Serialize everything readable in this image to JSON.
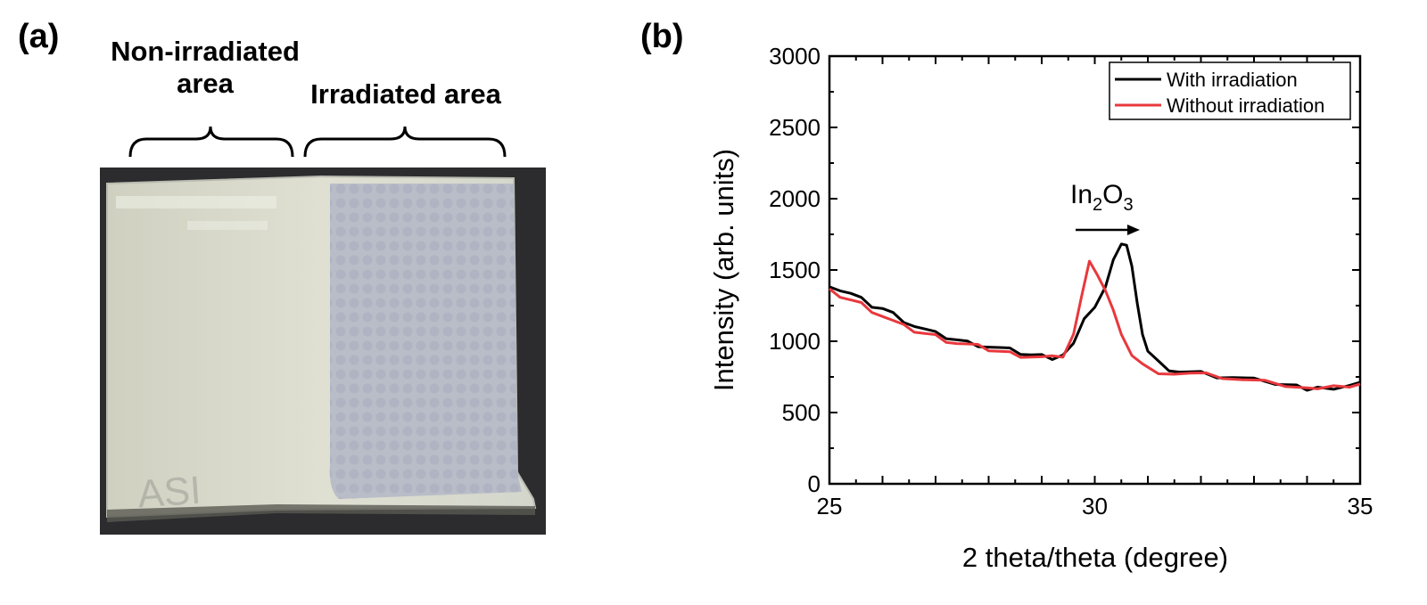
{
  "panel_a": {
    "label": "(a)",
    "caption_left_line1": "Non-irradiated",
    "caption_left_line2": "area",
    "caption_right": "Irradiated area",
    "sample_marking": "ASI"
  },
  "panel_b": {
    "label": "(b)",
    "annotation": {
      "base": "In",
      "sub1": "2",
      "mid": "O",
      "sub2": "3"
    }
  },
  "chart_data": {
    "type": "line",
    "xlabel": "2 theta/theta (degree)",
    "ylabel": "Intensity (arb. units)",
    "xlim": [
      25,
      35
    ],
    "ylim": [
      0,
      3000
    ],
    "xticks": [
      25,
      30,
      35
    ],
    "yticks": [
      0,
      500,
      1000,
      1500,
      2000,
      2500,
      3000
    ],
    "grid": false,
    "legend_position": "top-right",
    "series": [
      {
        "name": "With irradiation",
        "color": "#000000",
        "points": [
          [
            25.0,
            1400
          ],
          [
            25.2,
            1360
          ],
          [
            25.4,
            1330
          ],
          [
            25.6,
            1290
          ],
          [
            25.8,
            1250
          ],
          [
            26.0,
            1230
          ],
          [
            26.2,
            1190
          ],
          [
            26.4,
            1150
          ],
          [
            26.6,
            1110
          ],
          [
            26.8,
            1080
          ],
          [
            27.0,
            1050
          ],
          [
            27.2,
            1030
          ],
          [
            27.4,
            1010
          ],
          [
            27.6,
            990
          ],
          [
            27.8,
            980
          ],
          [
            28.0,
            965
          ],
          [
            28.2,
            950
          ],
          [
            28.4,
            935
          ],
          [
            28.6,
            920
          ],
          [
            28.8,
            905
          ],
          [
            29.0,
            895
          ],
          [
            29.2,
            890
          ],
          [
            29.4,
            910
          ],
          [
            29.6,
            980
          ],
          [
            29.8,
            1140
          ],
          [
            30.0,
            1250
          ],
          [
            30.2,
            1380
          ],
          [
            30.35,
            1560
          ],
          [
            30.5,
            1700
          ],
          [
            30.6,
            1680
          ],
          [
            30.7,
            1520
          ],
          [
            30.8,
            1250
          ],
          [
            30.9,
            1060
          ],
          [
            31.0,
            930
          ],
          [
            31.2,
            850
          ],
          [
            31.4,
            810
          ],
          [
            31.6,
            790
          ],
          [
            31.8,
            780
          ],
          [
            32.0,
            770
          ],
          [
            32.3,
            755
          ],
          [
            32.6,
            745
          ],
          [
            33.0,
            730
          ],
          [
            33.4,
            715
          ],
          [
            33.8,
            700
          ],
          [
            34.0,
            650
          ],
          [
            34.2,
            660
          ],
          [
            34.5,
            675
          ],
          [
            34.8,
            690
          ],
          [
            35.0,
            700
          ]
        ]
      },
      {
        "name": "Without irradiation",
        "color": "#e8383d",
        "points": [
          [
            25.0,
            1350
          ],
          [
            25.2,
            1320
          ],
          [
            25.4,
            1290
          ],
          [
            25.6,
            1260
          ],
          [
            25.8,
            1220
          ],
          [
            26.0,
            1180
          ],
          [
            26.2,
            1140
          ],
          [
            26.4,
            1100
          ],
          [
            26.6,
            1075
          ],
          [
            26.8,
            1055
          ],
          [
            27.0,
            1035
          ],
          [
            27.2,
            1010
          ],
          [
            27.4,
            990
          ],
          [
            27.6,
            975
          ],
          [
            27.8,
            960
          ],
          [
            28.0,
            945
          ],
          [
            28.2,
            930
          ],
          [
            28.4,
            915
          ],
          [
            28.6,
            905
          ],
          [
            28.8,
            895
          ],
          [
            29.0,
            885
          ],
          [
            29.2,
            880
          ],
          [
            29.4,
            900
          ],
          [
            29.6,
            1050
          ],
          [
            29.75,
            1300
          ],
          [
            29.9,
            1580
          ],
          [
            30.05,
            1470
          ],
          [
            30.2,
            1350
          ],
          [
            30.35,
            1200
          ],
          [
            30.5,
            1060
          ],
          [
            30.7,
            900
          ],
          [
            30.9,
            830
          ],
          [
            31.2,
            790
          ],
          [
            31.5,
            775
          ],
          [
            31.8,
            770
          ],
          [
            32.1,
            760
          ],
          [
            32.4,
            750
          ],
          [
            32.8,
            730
          ],
          [
            33.2,
            715
          ],
          [
            33.6,
            700
          ],
          [
            34.0,
            680
          ],
          [
            34.2,
            660
          ],
          [
            34.5,
            670
          ],
          [
            34.8,
            690
          ],
          [
            35.0,
            700
          ]
        ]
      }
    ]
  }
}
